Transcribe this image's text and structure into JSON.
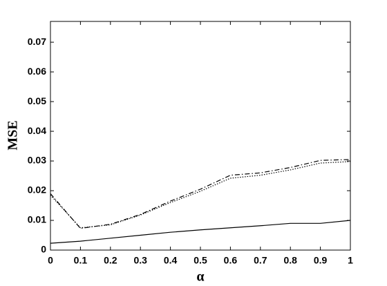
{
  "chart_data": {
    "type": "line",
    "xlabel": "α",
    "ylabel": "MSE",
    "x": [
      0,
      0.1,
      0.2,
      0.3,
      0.4,
      0.5,
      0.6,
      0.7,
      0.8,
      0.9,
      1
    ],
    "series": [
      {
        "color": "#000000",
        "style": "solid",
        "values": [
          0.0023,
          0.003,
          0.004,
          0.005,
          0.006,
          0.0068,
          0.0075,
          0.0082,
          0.009,
          0.009,
          0.01
        ]
      },
      {
        "color": "#000000",
        "style": "dashdot",
        "values": [
          0.019,
          0.0073,
          0.0087,
          0.012,
          0.0165,
          0.0205,
          0.0252,
          0.026,
          0.0278,
          0.0302,
          0.0305
        ]
      },
      {
        "color": "#000000",
        "style": "dotted",
        "values": [
          0.0185,
          0.0075,
          0.0085,
          0.0118,
          0.016,
          0.0198,
          0.0242,
          0.0252,
          0.027,
          0.0293,
          0.0298
        ]
      }
    ],
    "xlim": [
      0,
      1
    ],
    "xticks": [
      0,
      0.1,
      0.2,
      0.3,
      0.4,
      0.5,
      0.6,
      0.7,
      0.8,
      0.9,
      1
    ],
    "ylim": [
      0,
      0.077
    ],
    "yticks": [
      0,
      0.01,
      0.02,
      0.03,
      0.04,
      0.05,
      0.06,
      0.07
    ],
    "grid": false
  }
}
